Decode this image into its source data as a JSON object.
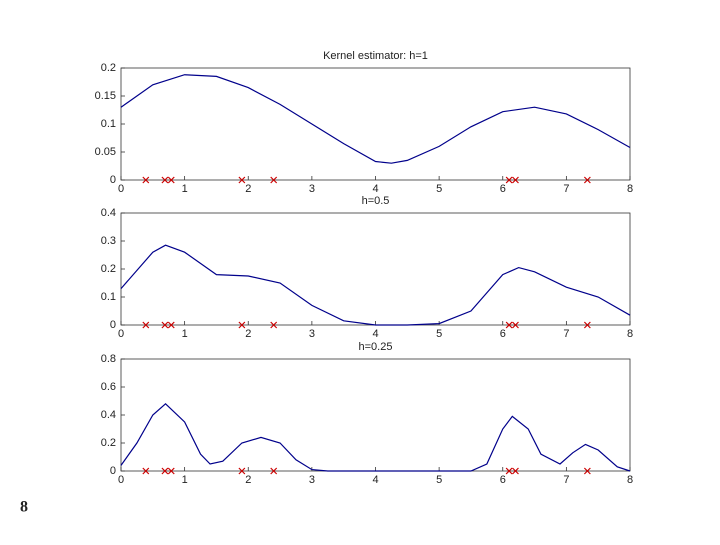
{
  "page_number": "8",
  "chart_data": [
    {
      "type": "line",
      "title": "Kernel estimator: h=1",
      "xlim": [
        0,
        8
      ],
      "xticks": [
        0,
        1,
        2,
        3,
        4,
        5,
        6,
        7,
        8
      ],
      "ylim": [
        0,
        0.2
      ],
      "yticks": [
        0,
        0.05,
        0.1,
        0.15,
        0.2
      ],
      "series": [
        {
          "color": "#00008b",
          "x": [
            0,
            0.5,
            1,
            1.5,
            2,
            2.5,
            3,
            3.5,
            4,
            4.25,
            4.5,
            5,
            5.5,
            6,
            6.5,
            7,
            7.5,
            8
          ],
          "values": [
            0.13,
            0.17,
            0.188,
            0.185,
            0.165,
            0.135,
            0.1,
            0.065,
            0.033,
            0.03,
            0.035,
            0.06,
            0.095,
            0.122,
            0.13,
            0.118,
            0.09,
            0.058
          ]
        }
      ],
      "markers": {
        "color": "#cc0000",
        "x": [
          0.39,
          0.69,
          0.79,
          1.9,
          2.4,
          6.1,
          6.2,
          7.33
        ],
        "values": [
          0,
          0,
          0,
          0,
          0,
          0,
          0,
          0
        ]
      }
    },
    {
      "type": "line",
      "title": "h=0.5",
      "xlim": [
        0,
        8
      ],
      "xticks": [
        0,
        1,
        2,
        3,
        4,
        5,
        6,
        7,
        8
      ],
      "ylim": [
        0,
        0.4
      ],
      "yticks": [
        0,
        0.1,
        0.2,
        0.3,
        0.4
      ],
      "series": [
        {
          "color": "#00008b",
          "x": [
            0,
            0.5,
            0.7,
            1,
            1.5,
            2,
            2.5,
            3,
            3.5,
            4,
            4.5,
            5,
            5.5,
            6,
            6.25,
            6.5,
            7,
            7.5,
            8
          ],
          "values": [
            0.13,
            0.26,
            0.285,
            0.26,
            0.18,
            0.175,
            0.15,
            0.07,
            0.015,
            0,
            0,
            0.005,
            0.05,
            0.18,
            0.205,
            0.19,
            0.135,
            0.1,
            0.035
          ]
        }
      ],
      "markers": {
        "color": "#cc0000",
        "x": [
          0.39,
          0.69,
          0.79,
          1.9,
          2.4,
          6.1,
          6.2,
          7.33
        ],
        "values": [
          0,
          0,
          0,
          0,
          0,
          0,
          0,
          0
        ]
      }
    },
    {
      "type": "line",
      "title": "h=0.25",
      "xlim": [
        0,
        8
      ],
      "xticks": [
        0,
        1,
        2,
        3,
        4,
        5,
        6,
        7,
        8
      ],
      "ylim": [
        0,
        0.8
      ],
      "yticks": [
        0,
        0.2,
        0.4,
        0.6,
        0.8
      ],
      "series": [
        {
          "color": "#00008b",
          "x": [
            0,
            0.25,
            0.5,
            0.7,
            1,
            1.25,
            1.4,
            1.6,
            1.9,
            2.2,
            2.5,
            2.75,
            3,
            3.25,
            5.5,
            5.75,
            6,
            6.15,
            6.4,
            6.6,
            6.9,
            7.1,
            7.3,
            7.5,
            7.8,
            8
          ],
          "values": [
            0.04,
            0.2,
            0.4,
            0.48,
            0.35,
            0.12,
            0.05,
            0.07,
            0.2,
            0.24,
            0.2,
            0.08,
            0.01,
            0,
            0,
            0.05,
            0.3,
            0.39,
            0.3,
            0.12,
            0.05,
            0.13,
            0.19,
            0.15,
            0.03,
            0
          ]
        }
      ],
      "markers": {
        "color": "#cc0000",
        "x": [
          0.39,
          0.69,
          0.79,
          1.9,
          2.4,
          6.1,
          6.2,
          7.33
        ],
        "values": [
          0,
          0,
          0,
          0,
          0,
          0,
          0,
          0
        ]
      }
    }
  ]
}
